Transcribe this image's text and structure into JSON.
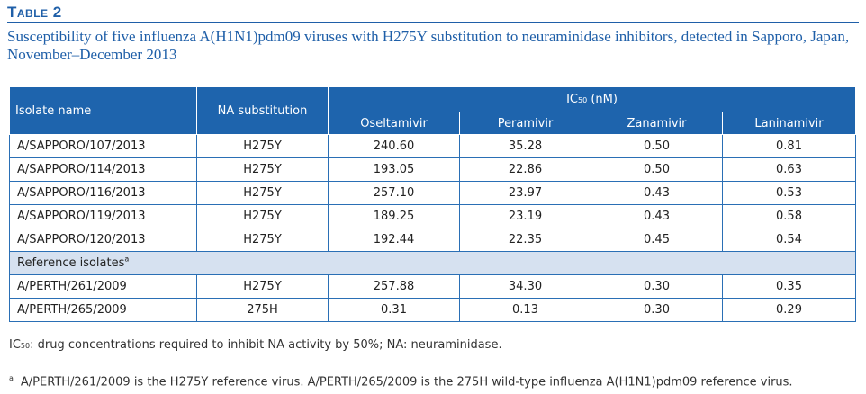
{
  "table_label": "Table 2",
  "caption": "Susceptibility of five influenza A(H1N1)pdm09 viruses with H275Y substitution to neuraminidase inhibitors, detected in Sapporo, Japan, November–December 2013",
  "header": {
    "isolate_name": "Isolate name",
    "na_substitution": "NA substitution",
    "ic50_prefix": "IC",
    "ic50_sub": "50",
    "ic50_unit": " (nM)",
    "drugs": [
      "Oseltamivir",
      "Peramivir",
      "Zanamivir",
      "Laninamivir"
    ]
  },
  "rows": [
    {
      "isolate": "A/SAPPORO/107/2013",
      "na": "H275Y",
      "oseltamivir": "240.60",
      "peramivir": "35.28",
      "zanamivir": "0.50",
      "laninamivir": "0.81"
    },
    {
      "isolate": "A/SAPPORO/114/2013",
      "na": "H275Y",
      "oseltamivir": "193.05",
      "peramivir": "22.86",
      "zanamivir": "0.50",
      "laninamivir": "0.63"
    },
    {
      "isolate": "A/SAPPORO/116/2013",
      "na": "H275Y",
      "oseltamivir": "257.10",
      "peramivir": "23.97",
      "zanamivir": "0.43",
      "laninamivir": "0.53"
    },
    {
      "isolate": "A/SAPPORO/119/2013",
      "na": "H275Y",
      "oseltamivir": "189.25",
      "peramivir": "23.19",
      "zanamivir": "0.43",
      "laninamivir": "0.58"
    },
    {
      "isolate": "A/SAPPORO/120/2013",
      "na": "H275Y",
      "oseltamivir": "192.44",
      "peramivir": "22.35",
      "zanamivir": "0.45",
      "laninamivir": "0.54"
    }
  ],
  "reference_section": {
    "label": "Reference isolates",
    "mark": "a"
  },
  "reference_rows": [
    {
      "isolate": "A/PERTH/261/2009",
      "na": "H275Y",
      "oseltamivir": "257.88",
      "peramivir": "34.30",
      "zanamivir": "0.30",
      "laninamivir": "0.35"
    },
    {
      "isolate": "A/PERTH/265/2009",
      "na": "275H",
      "oseltamivir": "0.31",
      "peramivir": "0.13",
      "zanamivir": "0.30",
      "laninamivir": "0.29"
    }
  ],
  "footnotes": {
    "abbrev_prefix": "IC",
    "abbrev_sub": "50",
    "abbrev_text": ": drug concentrations required to inhibit NA activity by 50%; NA: neuraminidase.",
    "a_mark": "a",
    "a_text": "A/PERTH/261/2009 is the H275Y reference virus. A/PERTH/265/2009 is the 275H wild-type influenza A(H1N1)pdm09 reference virus."
  },
  "colors": {
    "accent": "#1e64ad",
    "section_bg": "#d6e1f0",
    "title": "#1f5fa8"
  }
}
